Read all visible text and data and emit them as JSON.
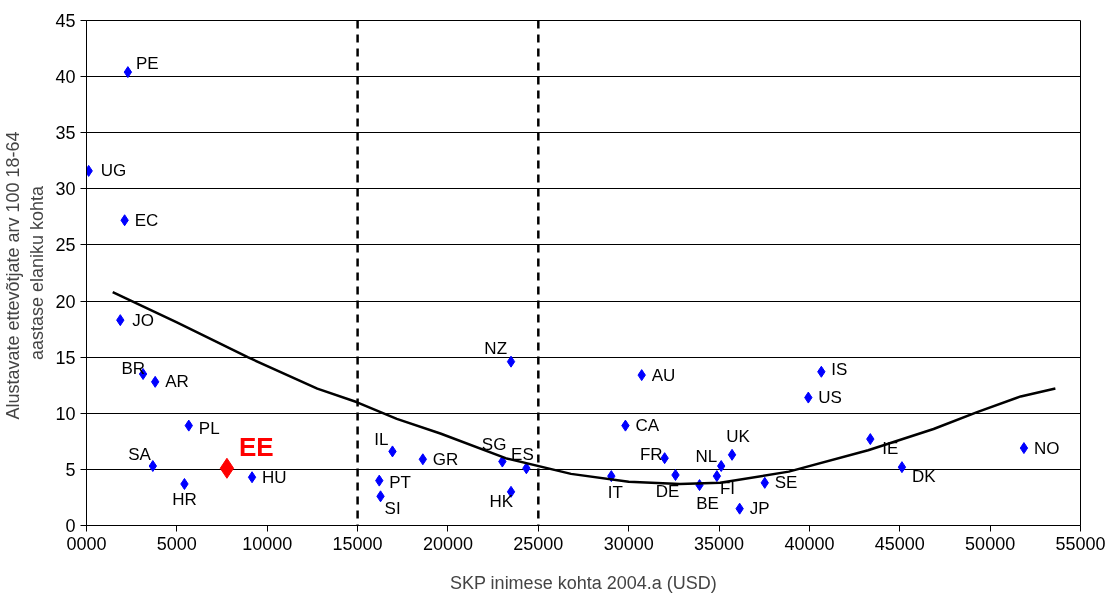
{
  "chart_data": {
    "type": "scatter",
    "xlabel": "SKP inimese kohta 2004.a (USD)",
    "ylabel": "Alustavate ettevõtjate arv 100  18-64\naastase elaniku kohta",
    "xlim": [
      0,
      55000
    ],
    "ylim": [
      0,
      45
    ],
    "xticks": [
      {
        "value": 0,
        "label": "0000"
      },
      5000,
      10000,
      15000,
      20000,
      25000,
      30000,
      35000,
      40000,
      45000,
      50000,
      55000
    ],
    "yticks": [
      0,
      5,
      10,
      15,
      20,
      25,
      30,
      35,
      40,
      45
    ],
    "grid": "y",
    "marker": "diamond",
    "series": [
      {
        "color": "#0000ff",
        "x": [
          2290,
          120,
          2110,
          1870,
          3130,
          3800,
          5660,
          3670,
          5420,
          9160,
          16930,
          16200,
          16270,
          18610,
          23010,
          24340,
          23490,
          23490,
          30720,
          29820,
          29040,
          31990,
          32590,
          33920,
          35120,
          34880,
          35720,
          37530,
          36140,
          40660,
          39940,
          43370,
          45120,
          51870
        ],
        "values": [
          40.4,
          31.6,
          27.2,
          18.3,
          13.5,
          12.8,
          8.9,
          5.3,
          3.7,
          4.3,
          6.6,
          4.0,
          2.6,
          5.9,
          5.7,
          5.1,
          3.0,
          14.6,
          13.4,
          8.9,
          4.4,
          6.0,
          4.5,
          3.6,
          5.3,
          4.4,
          6.3,
          3.8,
          1.5,
          13.7,
          11.4,
          7.7,
          5.2,
          6.9
        ]
      },
      {
        "name": "EE",
        "color": "#ff0000",
        "x": [
          7770
        ],
        "values": [
          5.1
        ]
      },
      {
        "type": "line",
        "color": "#000000",
        "marker": "none",
        "x": [
          1450,
          5000,
          8920,
          12770,
          14940,
          17170,
          19580,
          23190,
          26810,
          30000,
          32830,
          35060,
          38860,
          43250,
          46870,
          49280,
          51690,
          53610
        ],
        "values": [
          20.8,
          18.1,
          15.0,
          12.2,
          11.0,
          9.5,
          8.2,
          6.0,
          4.6,
          3.9,
          3.7,
          3.8,
          4.8,
          6.7,
          8.6,
          10.1,
          11.5,
          12.2
        ]
      }
    ],
    "ref_lines": [
      {
        "axis": "x",
        "value": 15000,
        "line_style": "dashed",
        "color": "#000000"
      },
      {
        "axis": "x",
        "value": 25000,
        "line_style": "dashed",
        "color": "#000000"
      }
    ],
    "annotations": [
      {
        "text": "PE",
        "x": 2290,
        "y": 40.4
      },
      {
        "text": "UG",
        "x": 120,
        "y": 31.6
      },
      {
        "text": "EC",
        "x": 2110,
        "y": 27.2
      },
      {
        "text": "JO",
        "x": 1870,
        "y": 18.3
      },
      {
        "text": "BR",
        "x": 3130,
        "y": 13.5
      },
      {
        "text": "AR",
        "x": 3800,
        "y": 12.8
      },
      {
        "text": "PL",
        "x": 5660,
        "y": 8.9
      },
      {
        "text": "SA",
        "x": 3670,
        "y": 5.3
      },
      {
        "text": "HR",
        "x": 5420,
        "y": 3.7
      },
      {
        "text": "HU",
        "x": 9160,
        "y": 4.3
      },
      {
        "text": "IL",
        "x": 16930,
        "y": 6.6
      },
      {
        "text": "PT",
        "x": 16200,
        "y": 4.0
      },
      {
        "text": "SI",
        "x": 16270,
        "y": 2.6
      },
      {
        "text": "GR",
        "x": 18610,
        "y": 5.9
      },
      {
        "text": "SG",
        "x": 23010,
        "y": 5.7
      },
      {
        "text": "ES",
        "x": 24340,
        "y": 5.1
      },
      {
        "text": "HK",
        "x": 23490,
        "y": 3.0
      },
      {
        "text": "NZ",
        "x": 23490,
        "y": 14.6
      },
      {
        "text": "AU",
        "x": 30720,
        "y": 13.4
      },
      {
        "text": "CA",
        "x": 29820,
        "y": 8.9
      },
      {
        "text": "IT",
        "x": 29040,
        "y": 4.4
      },
      {
        "text": "FR",
        "x": 31990,
        "y": 6.0
      },
      {
        "text": "DE",
        "x": 32590,
        "y": 4.5
      },
      {
        "text": "BE",
        "x": 33920,
        "y": 3.6
      },
      {
        "text": "NL",
        "x": 35120,
        "y": 5.3
      },
      {
        "text": "FI",
        "x": 34880,
        "y": 4.4
      },
      {
        "text": "UK",
        "x": 35720,
        "y": 6.3
      },
      {
        "text": "SE",
        "x": 37530,
        "y": 3.8
      },
      {
        "text": "JP",
        "x": 36140,
        "y": 1.5
      },
      {
        "text": "IS",
        "x": 40660,
        "y": 13.7
      },
      {
        "text": "US",
        "x": 39940,
        "y": 11.4
      },
      {
        "text": "IE",
        "x": 43370,
        "y": 7.7
      },
      {
        "text": "DK",
        "x": 45120,
        "y": 5.2
      },
      {
        "text": "NO",
        "x": 51870,
        "y": 6.9
      }
    ]
  }
}
